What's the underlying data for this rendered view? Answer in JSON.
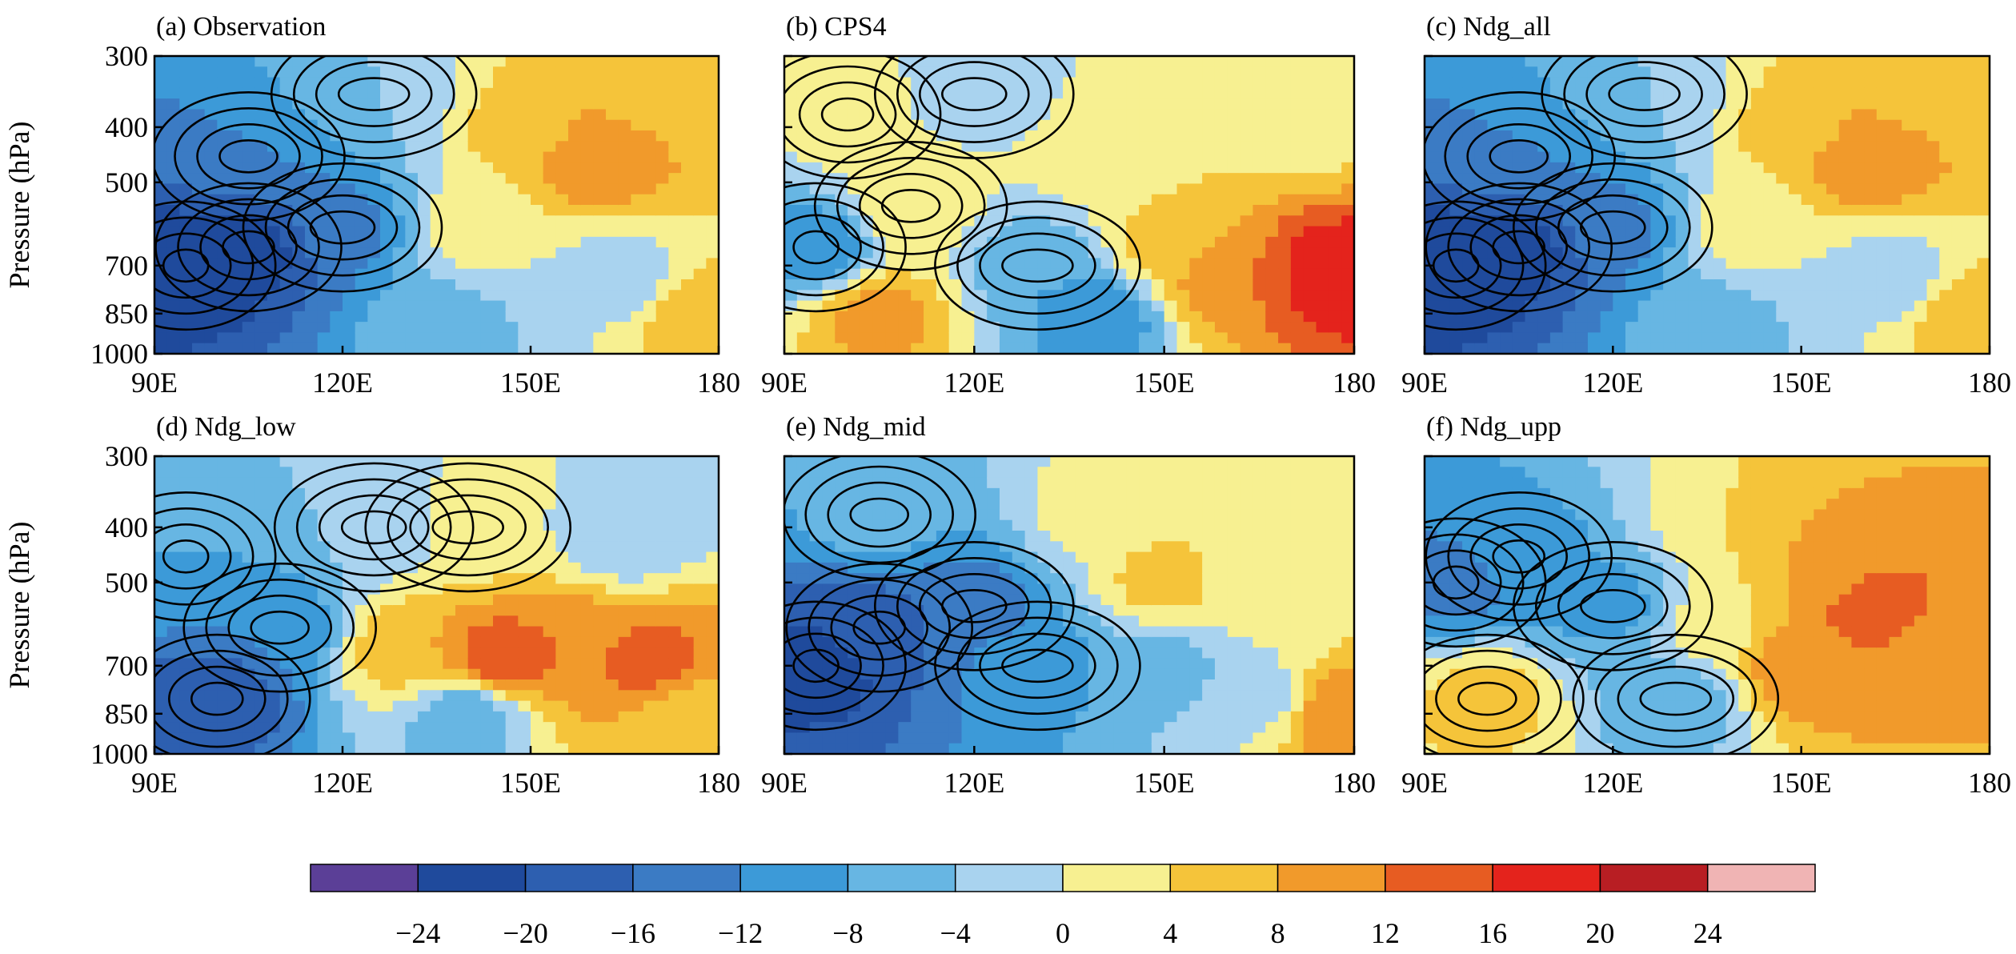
{
  "chart_data": [
    {
      "type": "heatmap",
      "panel": "a",
      "title": "(a) Observation",
      "xlabel": "",
      "ylabel": "Pressure (hPa)",
      "xticks": [
        "90E",
        "120E",
        "150E",
        "180"
      ],
      "yticks": [
        "300",
        "400",
        "500",
        "700",
        "850",
        "1000"
      ],
      "xlim": [
        90,
        180
      ],
      "ylim": [
        1000,
        300
      ],
      "contour_overlay": true,
      "regions": [
        {
          "lon": 95,
          "p": 700,
          "value": -24
        },
        {
          "lon": 105,
          "p": 650,
          "value": -22
        },
        {
          "lon": 105,
          "p": 450,
          "value": -12
        },
        {
          "lon": 120,
          "p": 600,
          "value": -14
        },
        {
          "lon": 125,
          "p": 350,
          "value": -4
        },
        {
          "lon": 140,
          "p": 600,
          "value": 2
        },
        {
          "lon": 150,
          "p": 400,
          "value": 6
        },
        {
          "lon": 160,
          "p": 450,
          "value": 12
        },
        {
          "lon": 170,
          "p": 350,
          "value": 6
        },
        {
          "lon": 176,
          "p": 850,
          "value": 8
        },
        {
          "lon": 135,
          "p": 900,
          "value": -6
        },
        {
          "lon": 165,
          "p": 750,
          "value": -3
        }
      ]
    },
    {
      "type": "heatmap",
      "panel": "b",
      "title": "(b) CPS4",
      "xlabel": "",
      "ylabel": "",
      "xticks": [
        "90E",
        "120E",
        "150E",
        "180"
      ],
      "yticks": [
        "300",
        "400",
        "500",
        "700",
        "850",
        "1000"
      ],
      "xlim": [
        90,
        180
      ],
      "ylim": [
        1000,
        300
      ],
      "contour_overlay": true,
      "regions": [
        {
          "lon": 95,
          "p": 650,
          "value": -12
        },
        {
          "lon": 100,
          "p": 380,
          "value": 2
        },
        {
          "lon": 110,
          "p": 550,
          "value": 4
        },
        {
          "lon": 120,
          "p": 350,
          "value": -2
        },
        {
          "lon": 130,
          "p": 700,
          "value": -8
        },
        {
          "lon": 140,
          "p": 450,
          "value": 2
        },
        {
          "lon": 150,
          "p": 650,
          "value": 6
        },
        {
          "lon": 160,
          "p": 750,
          "value": 12
        },
        {
          "lon": 177,
          "p": 720,
          "value": 20
        },
        {
          "lon": 105,
          "p": 850,
          "value": 10
        },
        {
          "lon": 140,
          "p": 850,
          "value": -12
        },
        {
          "lon": 170,
          "p": 400,
          "value": 2
        }
      ]
    },
    {
      "type": "heatmap",
      "panel": "c",
      "title": "(c) Ndg_all",
      "xlabel": "",
      "ylabel": "",
      "xticks": [
        "90E",
        "120E",
        "150E",
        "180"
      ],
      "yticks": [
        "300",
        "400",
        "500",
        "700",
        "850",
        "1000"
      ],
      "xlim": [
        90,
        180
      ],
      "ylim": [
        1000,
        300
      ],
      "contour_overlay": true,
      "regions": [
        {
          "lon": 95,
          "p": 700,
          "value": -24
        },
        {
          "lon": 105,
          "p": 650,
          "value": -22
        },
        {
          "lon": 105,
          "p": 450,
          "value": -12
        },
        {
          "lon": 120,
          "p": 600,
          "value": -14
        },
        {
          "lon": 125,
          "p": 350,
          "value": -4
        },
        {
          "lon": 140,
          "p": 600,
          "value": 2
        },
        {
          "lon": 150,
          "p": 400,
          "value": 6
        },
        {
          "lon": 160,
          "p": 450,
          "value": 12
        },
        {
          "lon": 170,
          "p": 350,
          "value": 6
        },
        {
          "lon": 176,
          "p": 850,
          "value": 8
        },
        {
          "lon": 135,
          "p": 900,
          "value": -6
        },
        {
          "lon": 165,
          "p": 750,
          "value": -3
        }
      ]
    },
    {
      "type": "heatmap",
      "panel": "d",
      "title": "(d) Ndg_low",
      "xlabel": "",
      "ylabel": "Pressure (hPa)",
      "xticks": [
        "90E",
        "120E",
        "150E",
        "180"
      ],
      "yticks": [
        "300",
        "400",
        "500",
        "700",
        "850",
        "1000"
      ],
      "xlim": [
        90,
        180
      ],
      "ylim": [
        1000,
        300
      ],
      "contour_overlay": true,
      "regions": [
        {
          "lon": 95,
          "p": 450,
          "value": -8
        },
        {
          "lon": 100,
          "p": 800,
          "value": -20
        },
        {
          "lon": 110,
          "p": 600,
          "value": -12
        },
        {
          "lon": 125,
          "p": 400,
          "value": -4
        },
        {
          "lon": 140,
          "p": 400,
          "value": 2
        },
        {
          "lon": 130,
          "p": 650,
          "value": 8
        },
        {
          "lon": 145,
          "p": 680,
          "value": 16
        },
        {
          "lon": 160,
          "p": 650,
          "value": 12
        },
        {
          "lon": 170,
          "p": 700,
          "value": 14
        },
        {
          "lon": 140,
          "p": 850,
          "value": -8
        },
        {
          "lon": 165,
          "p": 420,
          "value": -4
        },
        {
          "lon": 175,
          "p": 850,
          "value": 4
        }
      ]
    },
    {
      "type": "heatmap",
      "panel": "e",
      "title": "(e) Ndg_mid",
      "xlabel": "",
      "ylabel": "",
      "xticks": [
        "90E",
        "120E",
        "150E",
        "180"
      ],
      "yticks": [
        "300",
        "400",
        "500",
        "700",
        "850",
        "1000"
      ],
      "xlim": [
        90,
        180
      ],
      "ylim": [
        1000,
        300
      ],
      "contour_overlay": true,
      "regions": [
        {
          "lon": 95,
          "p": 700,
          "value": -22
        },
        {
          "lon": 105,
          "p": 600,
          "value": -18
        },
        {
          "lon": 105,
          "p": 380,
          "value": -6
        },
        {
          "lon": 120,
          "p": 550,
          "value": -14
        },
        {
          "lon": 130,
          "p": 700,
          "value": -10
        },
        {
          "lon": 140,
          "p": 380,
          "value": 2
        },
        {
          "lon": 150,
          "p": 500,
          "value": 6
        },
        {
          "lon": 150,
          "p": 700,
          "value": -6
        },
        {
          "lon": 165,
          "p": 500,
          "value": 2
        },
        {
          "lon": 178,
          "p": 850,
          "value": 12
        },
        {
          "lon": 165,
          "p": 800,
          "value": -2
        }
      ]
    },
    {
      "type": "heatmap",
      "panel": "f",
      "title": "(f) Ndg_upp",
      "xlabel": "",
      "ylabel": "",
      "xticks": [
        "90E",
        "120E",
        "150E",
        "180"
      ],
      "yticks": [
        "300",
        "400",
        "500",
        "700",
        "850",
        "1000"
      ],
      "xlim": [
        90,
        180
      ],
      "ylim": [
        1000,
        300
      ],
      "contour_overlay": true,
      "regions": [
        {
          "lon": 95,
          "p": 500,
          "value": -14
        },
        {
          "lon": 105,
          "p": 450,
          "value": -10
        },
        {
          "lon": 100,
          "p": 800,
          "value": 6
        },
        {
          "lon": 120,
          "p": 550,
          "value": -10
        },
        {
          "lon": 130,
          "p": 800,
          "value": -8
        },
        {
          "lon": 140,
          "p": 400,
          "value": 4
        },
        {
          "lon": 155,
          "p": 450,
          "value": 10
        },
        {
          "lon": 162,
          "p": 550,
          "value": 14
        },
        {
          "lon": 150,
          "p": 700,
          "value": 12
        },
        {
          "lon": 175,
          "p": 650,
          "value": 8
        },
        {
          "lon": 135,
          "p": 600,
          "value": 2
        }
      ]
    }
  ],
  "colorbar": {
    "colors": [
      "#5b3f97",
      "#1f4a9c",
      "#2d5fb0",
      "#3b7bc4",
      "#3c9ad8",
      "#67b6e3",
      "#a9d3ef",
      "#f7f091",
      "#f5c43a",
      "#f19a2b",
      "#e75c22",
      "#e4231c",
      "#b81e23",
      "#f0b4b4"
    ],
    "labels": [
      "−24",
      "−20",
      "−16",
      "−12",
      "−8",
      "−4",
      "0",
      "4",
      "8",
      "12",
      "16",
      "20",
      "24"
    ]
  }
}
